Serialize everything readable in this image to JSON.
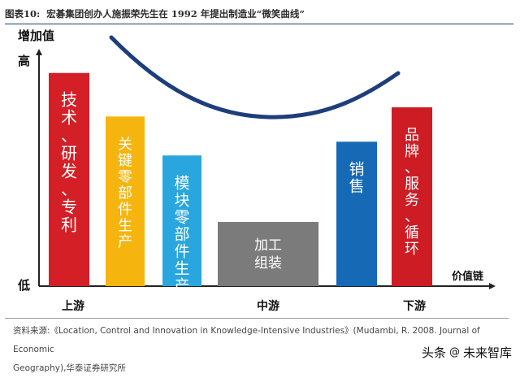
{
  "header": {
    "figure_number": "图表10:",
    "title": "宏碁集团创办人施振荣先生在 1992 年提出制造业“微笑曲线”"
  },
  "chart_data": {
    "type": "bar",
    "ylabel": "增加值",
    "xlabel": "价值链",
    "y_high_label": "高",
    "y_low_label": "低",
    "curve": "smile",
    "categories": [
      {
        "label": "技术、研发、专利",
        "color": "#d41f26",
        "level": 0.93
      },
      {
        "label": "关键零部件生产",
        "color": "#f6b40e",
        "level": 0.74
      },
      {
        "label": "模块零部件生产",
        "color": "#29a6dd",
        "level": 0.57
      },
      {
        "label": "加工组装",
        "color": "#7b7b7b",
        "level": 0.28
      },
      {
        "label": "销售",
        "color": "#1669b5",
        "level": 0.63
      },
      {
        "label": "品牌、服务、循环",
        "color": "#cd1c24",
        "level": 0.78
      }
    ],
    "stages": [
      {
        "label": "上游",
        "position": 0.1
      },
      {
        "label": "中游",
        "position": 0.5
      },
      {
        "label": "下游",
        "position": 0.9
      }
    ]
  },
  "source": {
    "line1": "资料来源:《Location, Control and Innovation in Knowledge-Intensive Industries》(Mudambi, R. 2008. Journal of Economic",
    "line2": "Geography),华泰证券研究所"
  },
  "watermark": {
    "platform": "头条",
    "at": "@",
    "handle": "未来智库"
  }
}
